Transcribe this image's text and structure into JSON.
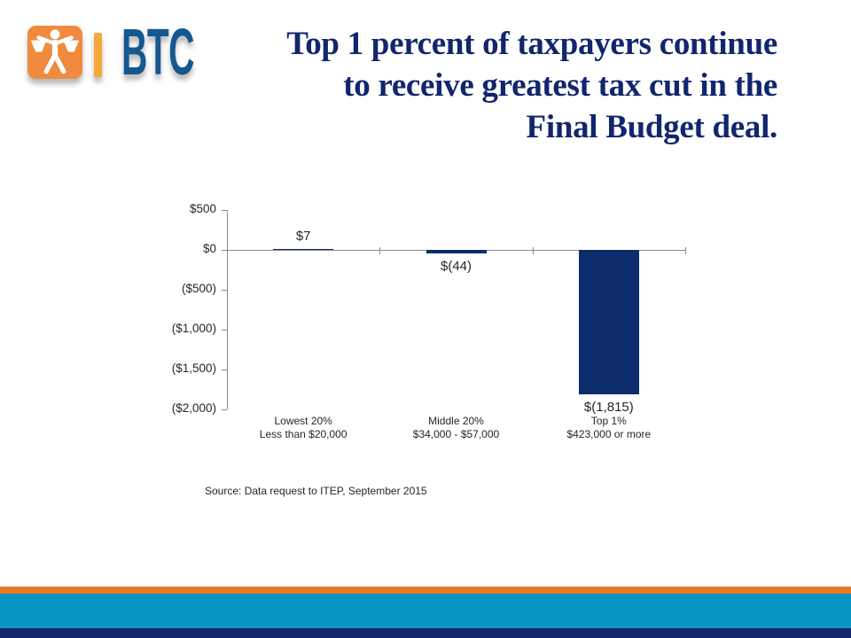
{
  "colors": {
    "title_navy": "#12266E",
    "bar_navy": "#0D2C6C",
    "logo_orange": "#EF8A3E",
    "logo_gold": "#F5A83C",
    "logo_blue": "#15578F",
    "stripe_orange": "#E87824",
    "stripe_blue": "#0894C5",
    "stripe_navy": "#15256B",
    "axis_gray": "#8A8A8A",
    "text_dark": "#262626"
  },
  "logo": {
    "icon": "balance-scales-figure-icon",
    "separator": "|",
    "text": "BTC"
  },
  "title_lines": {
    "0": "Top 1 percent of taxpayers continue",
    "1": "to receive greatest tax cut in the",
    "2": "Final Budget deal."
  },
  "chart_data": {
    "type": "bar",
    "title": "",
    "xlabel": "",
    "ylabel": "",
    "ylim": [
      -2000,
      500
    ],
    "grid": false,
    "legend": "none",
    "bar_color": "#0D2C6C",
    "categories": [
      [
        "Lowest 20%",
        "Less than $20,000"
      ],
      [
        "Middle 20%",
        "$34,000 - $57,000"
      ],
      [
        "Top 1%",
        "$423,000 or more"
      ]
    ],
    "values": [
      7,
      -44,
      -1815
    ],
    "data_labels": [
      "$7",
      "$(44)",
      "$(1,815)"
    ],
    "y_ticks": [
      {
        "value": 500,
        "label": "$500"
      },
      {
        "value": 0,
        "label": "$0"
      },
      {
        "value": -500,
        "label": "($500)"
      },
      {
        "value": -1000,
        "label": "($1,000)"
      },
      {
        "value": -1500,
        "label": "($1,500)"
      },
      {
        "value": -2000,
        "label": "($2,000)"
      }
    ]
  },
  "source_note": "Source: Data request to ITEP, September 2015"
}
